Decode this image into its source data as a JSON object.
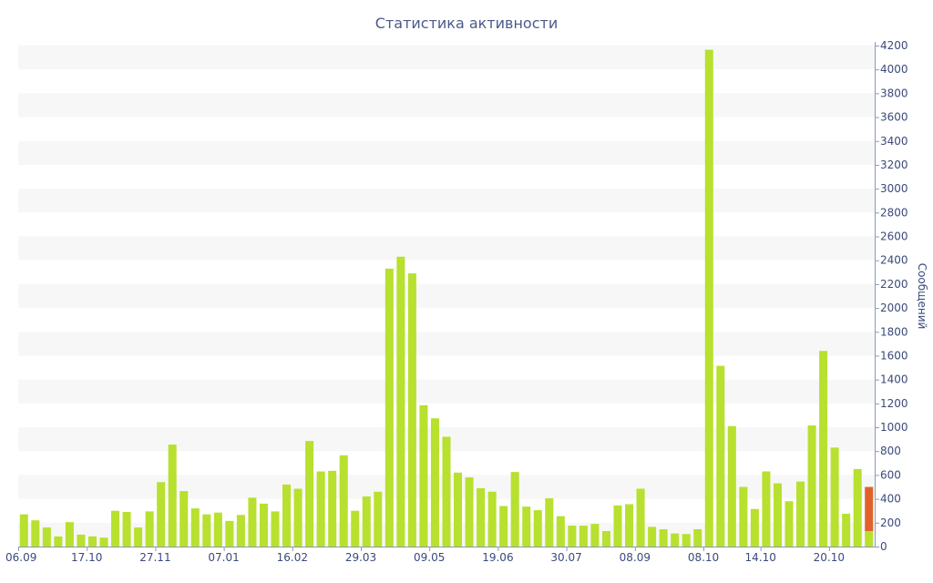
{
  "chart_data": {
    "type": "bar",
    "title": "Статистика активности",
    "xlabel": "",
    "ylabel": "Сообщений",
    "ylim": [
      0,
      4200
    ],
    "y_ticks": [
      0,
      200,
      400,
      600,
      800,
      1000,
      1200,
      1400,
      1600,
      1800,
      2000,
      2200,
      2400,
      2600,
      2800,
      3000,
      3200,
      3400,
      3600,
      3800,
      4000,
      4200
    ],
    "y_axis_position": "right",
    "grid": "horizontal alternating bands",
    "x_tick_labels": [
      "06.09",
      "17.10",
      "27.11",
      "07.01",
      "16.02",
      "29.03",
      "09.05",
      "19.06",
      "30.07",
      "08.09",
      "08.10",
      "14.10",
      "20.10"
    ],
    "x_tick_bar_index": [
      0,
      6,
      12,
      18,
      24,
      30,
      36,
      42,
      48,
      54,
      60,
      65,
      71
    ],
    "series": [
      {
        "color": "#b8e02f",
        "values": [
          270,
          220,
          160,
          85,
          205,
          100,
          85,
          75,
          300,
          290,
          160,
          295,
          540,
          855,
          465,
          320,
          270,
          285,
          215,
          265,
          410,
          360,
          295,
          520,
          485,
          885,
          630,
          635,
          765,
          300,
          420,
          460,
          2330,
          2430,
          2290,
          1185,
          1075,
          920,
          620,
          580,
          490,
          460,
          340,
          625,
          335,
          305,
          405,
          255,
          175,
          175,
          190,
          130,
          345,
          355,
          485,
          165,
          145,
          110,
          105,
          145,
          4165,
          1515,
          1010,
          500,
          315,
          630,
          530,
          380,
          545,
          1015,
          1640,
          830,
          275,
          650,
          130
        ]
      },
      {
        "color": "#e0622a",
        "stacked_on_last_bar": 130,
        "values": [
          370
        ]
      }
    ]
  }
}
